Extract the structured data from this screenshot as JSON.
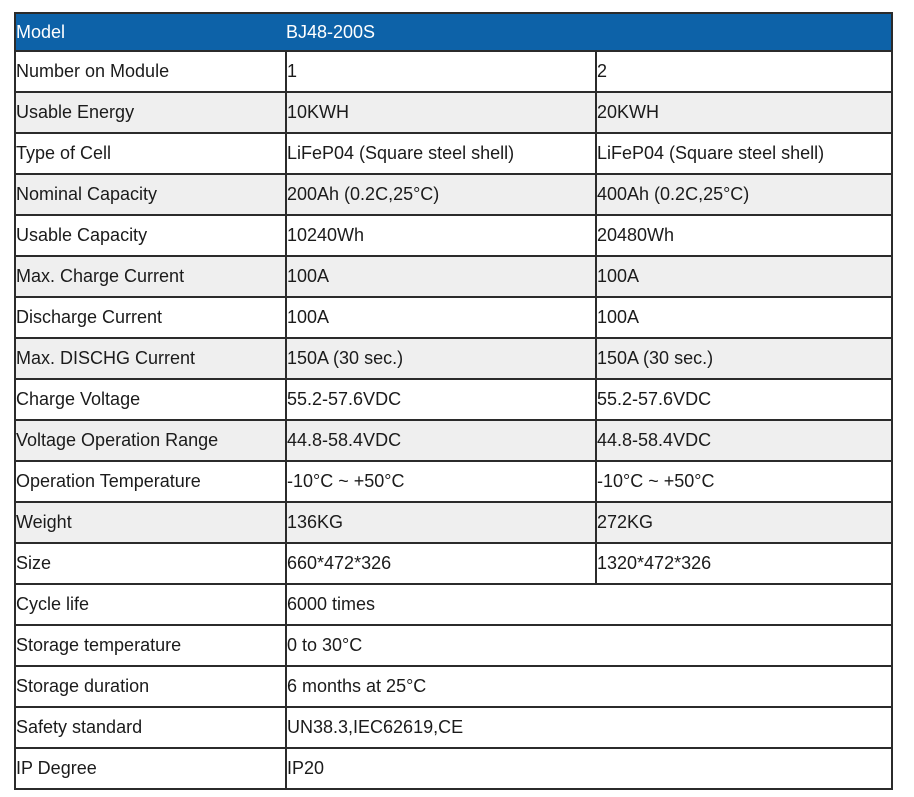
{
  "header": {
    "label": "Model",
    "value": "BJ48-200S"
  },
  "rows": [
    {
      "label": "Number on Module",
      "values": [
        "1",
        "2"
      ]
    },
    {
      "label": "Usable Energy",
      "values": [
        "10KWH",
        "20KWH"
      ]
    },
    {
      "label": "Type of Cell",
      "values": [
        "LiFeP04 (Square steel shell)",
        "LiFeP04 (Square steel shell)"
      ]
    },
    {
      "label": "Nominal Capacity",
      "values": [
        "200Ah (0.2C,25°C)",
        "400Ah (0.2C,25°C)"
      ]
    },
    {
      "label": "Usable Capacity",
      "values": [
        "10240Wh",
        "20480Wh"
      ]
    },
    {
      "label": "Max. Charge Current",
      "values": [
        "100A",
        "100A"
      ]
    },
    {
      "label": "Discharge Current",
      "values": [
        "100A",
        "100A"
      ]
    },
    {
      "label": "Max. DISCHG Current",
      "values": [
        "150A (30 sec.)",
        "150A (30 sec.)"
      ]
    },
    {
      "label": "Charge Voltage",
      "values": [
        "55.2-57.6VDC",
        "55.2-57.6VDC"
      ]
    },
    {
      "label": "Voltage Operation Range",
      "values": [
        "44.8-58.4VDC",
        "44.8-58.4VDC"
      ]
    },
    {
      "label": "Operation Temperature",
      "values": [
        "-10°C ~ +50°C",
        "-10°C ~ +50°C"
      ]
    },
    {
      "label": "Weight",
      "values": [
        "136KG",
        "272KG"
      ]
    },
    {
      "label": "Size",
      "values": [
        "660*472*326",
        "1320*472*326"
      ]
    },
    {
      "label": "Cycle life",
      "values": [
        "6000 times"
      ]
    },
    {
      "label": "Storage temperature",
      "values": [
        "0 to 30°C"
      ]
    },
    {
      "label": "Storage duration",
      "values": [
        "6 months at 25°C"
      ]
    },
    {
      "label": "Safety standard",
      "values": [
        "UN38.3,IEC62619,CE"
      ]
    },
    {
      "label": "IP Degree",
      "values": [
        "IP20"
      ]
    }
  ],
  "colors": {
    "header_bg": "#0d62a8",
    "header_text": "#ffffff",
    "stripe_bg": "#efefef",
    "border": "#2b2b2b",
    "text": "#1b1b1b"
  }
}
